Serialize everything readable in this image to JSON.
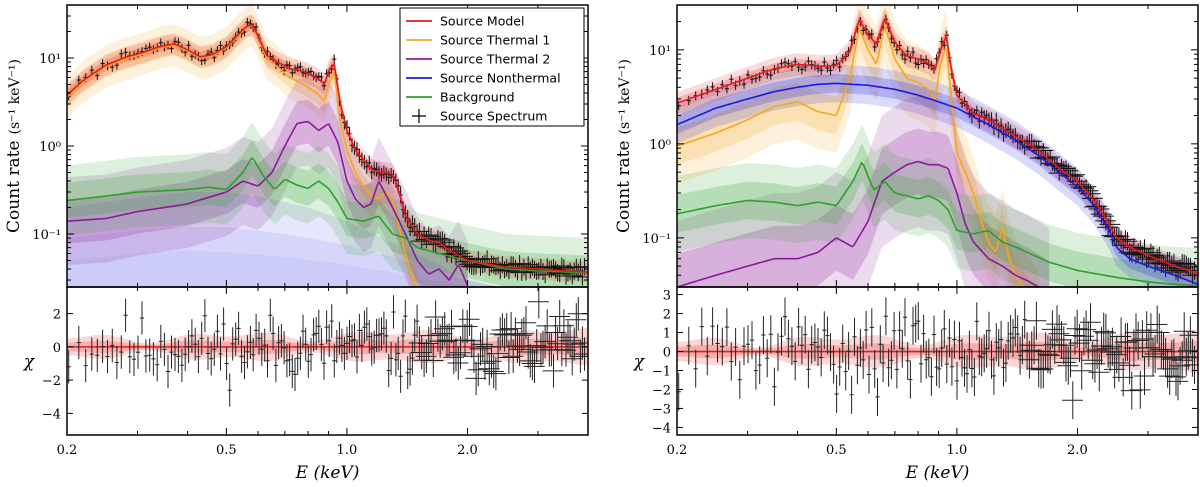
{
  "chart_data": [
    {
      "type": "line",
      "panel": "left",
      "ylabel": "Count rate",
      "ylabel_unit": "(s⁻¹ keV⁻¹)",
      "xlabel": "E (keV)",
      "resid_label": "χ",
      "xlim": [
        0.2,
        4.0
      ],
      "ylim": [
        0.025,
        40
      ],
      "resid_ylim": [
        -5.3,
        3.6
      ],
      "xticks": [
        {
          "v": 0.2,
          "label": "0.2"
        },
        {
          "v": 0.5,
          "label": "0.5"
        },
        {
          "v": 1.0,
          "label": "1.0"
        },
        {
          "v": 2.0,
          "label": "2.0"
        }
      ],
      "yticks": [
        {
          "v": 0.1,
          "label": "10⁻¹"
        },
        {
          "v": 1,
          "label": "10⁰"
        },
        {
          "v": 10,
          "label": "10¹"
        }
      ],
      "resid_ticks": [
        {
          "v": 2,
          "label": "2"
        },
        {
          "v": 0,
          "label": "0"
        },
        {
          "v": -2,
          "label": "−2"
        },
        {
          "v": -4,
          "label": "−4"
        }
      ],
      "legend": [
        {
          "label": "Source Model",
          "color": "#e41a1c",
          "kind": "line"
        },
        {
          "label": "Source Thermal 1",
          "color": "#f5a623",
          "kind": "line"
        },
        {
          "label": "Source Thermal 2",
          "color": "#8b1a9a",
          "kind": "line"
        },
        {
          "label": "Source Nonthermal",
          "color": "#1a1adf",
          "kind": "line"
        },
        {
          "label": "Background",
          "color": "#2ca02c",
          "kind": "line"
        },
        {
          "label": "Source Spectrum",
          "color": "#000000",
          "kind": "cross"
        }
      ],
      "series": [
        {
          "name": "Source Thermal 1",
          "color": "#f5a623",
          "band": 0.12,
          "x": [
            0.2,
            0.22,
            0.25,
            0.28,
            0.31,
            0.34,
            0.37,
            0.4,
            0.43,
            0.46,
            0.5,
            0.53,
            0.56,
            0.58,
            0.6,
            0.63,
            0.67,
            0.72,
            0.78,
            0.84,
            0.88,
            0.9,
            0.93,
            0.96,
            1.0,
            1.05,
            1.1,
            1.15,
            1.2,
            1.25,
            1.3,
            1.35,
            1.4,
            1.45,
            1.5
          ],
          "y": [
            3.6,
            5.4,
            8.0,
            9.8,
            11.2,
            13.0,
            14.0,
            12.0,
            10.0,
            10.5,
            13.0,
            17.0,
            22.0,
            23.5,
            17.0,
            10.0,
            8.0,
            6.0,
            5.0,
            4.0,
            3.2,
            5.0,
            6.8,
            2.0,
            0.9,
            0.5,
            0.35,
            0.28,
            0.25,
            0.3,
            0.25,
            0.12,
            0.06,
            0.035,
            0.024
          ]
        },
        {
          "name": "Source Thermal 2",
          "color": "#8b1a9a",
          "band": 0.25,
          "x": [
            0.2,
            0.25,
            0.3,
            0.35,
            0.4,
            0.45,
            0.5,
            0.55,
            0.6,
            0.65,
            0.7,
            0.75,
            0.8,
            0.85,
            0.9,
            0.95,
            1.0,
            1.05,
            1.1,
            1.15,
            1.2,
            1.3,
            1.4,
            1.5,
            1.6,
            1.7,
            1.8,
            1.9,
            2.0
          ],
          "y": [
            0.14,
            0.15,
            0.18,
            0.2,
            0.22,
            0.26,
            0.3,
            0.4,
            0.35,
            0.5,
            1.0,
            1.8,
            1.9,
            1.5,
            1.8,
            1.1,
            0.4,
            0.25,
            0.2,
            0.22,
            0.4,
            0.2,
            0.1,
            0.05,
            0.035,
            0.04,
            0.03,
            0.045,
            0.026
          ]
        },
        {
          "name": "Background",
          "color": "#2ca02c",
          "band": 0.2,
          "x": [
            0.2,
            0.25,
            0.3,
            0.35,
            0.4,
            0.45,
            0.5,
            0.55,
            0.58,
            0.62,
            0.66,
            0.7,
            0.75,
            0.8,
            0.85,
            0.9,
            0.95,
            1.0,
            1.1,
            1.2,
            1.3,
            1.4,
            1.5,
            1.7,
            2.0,
            2.5,
            3.0,
            3.5,
            4.0
          ],
          "y": [
            0.24,
            0.27,
            0.3,
            0.31,
            0.32,
            0.34,
            0.32,
            0.5,
            0.75,
            0.45,
            0.32,
            0.42,
            0.36,
            0.33,
            0.4,
            0.33,
            0.23,
            0.15,
            0.14,
            0.16,
            0.1,
            0.09,
            0.07,
            0.06,
            0.05,
            0.04,
            0.038,
            0.037,
            0.036
          ]
        },
        {
          "name": "Source Model",
          "color": "#e41a1c",
          "band": 0.06,
          "x": [
            0.2,
            0.22,
            0.25,
            0.28,
            0.31,
            0.34,
            0.37,
            0.4,
            0.43,
            0.46,
            0.5,
            0.53,
            0.56,
            0.58,
            0.6,
            0.63,
            0.67,
            0.72,
            0.78,
            0.84,
            0.88,
            0.9,
            0.93,
            0.96,
            1.0,
            1.05,
            1.1,
            1.15,
            1.2,
            1.25,
            1.3,
            1.35,
            1.4,
            1.5,
            1.6,
            1.7,
            1.8,
            2.0,
            2.5,
            3.0,
            3.5,
            4.0
          ],
          "y": [
            3.8,
            5.6,
            8.3,
            10.2,
            11.6,
            13.4,
            14.5,
            12.4,
            10.3,
            10.9,
            13.4,
            17.6,
            22.6,
            24.0,
            17.8,
            10.8,
            9.0,
            7.6,
            7.0,
            6.0,
            5.0,
            7.2,
            8.6,
            3.2,
            1.5,
            0.9,
            0.7,
            0.55,
            0.5,
            0.5,
            0.48,
            0.3,
            0.16,
            0.1,
            0.085,
            0.08,
            0.065,
            0.05,
            0.042,
            0.04,
            0.038,
            0.037
          ]
        }
      ],
      "nonthermal_bands": [
        {
          "color": "#9a9af2",
          "opacity": 0.55,
          "x": [
            0.2,
            0.25,
            0.3,
            0.4,
            0.5,
            0.7,
            1.0,
            1.3,
            1.6,
            2.0,
            2.5
          ],
          "y": [
            0.05,
            0.055,
            0.06,
            0.065,
            0.062,
            0.055,
            0.045,
            0.036,
            0.03,
            0.026,
            0.024
          ]
        },
        {
          "color": "#b4b4f5",
          "opacity": 0.55,
          "x": [
            0.2,
            0.3,
            0.4,
            0.5,
            0.7,
            1.0,
            1.3,
            1.6,
            2.0,
            2.4
          ],
          "y": [
            0.09,
            0.11,
            0.12,
            0.12,
            0.1,
            0.075,
            0.055,
            0.04,
            0.03,
            0.025
          ]
        },
        {
          "color": "#d6d6fa",
          "opacity": 0.6,
          "x": [
            0.2,
            0.3,
            0.4,
            0.5,
            0.6,
            0.8,
            1.0,
            1.3,
            1.7,
            2.0
          ],
          "y": [
            0.2,
            0.26,
            0.3,
            0.3,
            0.27,
            0.2,
            0.14,
            0.08,
            0.045,
            0.028
          ]
        }
      ],
      "spectrum_seed": 7,
      "resid_seed": 11
    },
    {
      "type": "line",
      "panel": "right",
      "ylabel": "Count rate",
      "ylabel_unit": "(s⁻¹ keV⁻¹)",
      "xlabel": "E (keV)",
      "resid_label": "χ",
      "xlim": [
        0.2,
        4.0
      ],
      "ylim": [
        0.03,
        30
      ],
      "resid_ylim": [
        -4.4,
        3.4
      ],
      "xticks": [
        {
          "v": 0.2,
          "label": "0.2"
        },
        {
          "v": 0.5,
          "label": "0.5"
        },
        {
          "v": 1.0,
          "label": "1.0"
        },
        {
          "v": 2.0,
          "label": "2.0"
        }
      ],
      "yticks": [
        {
          "v": 0.1,
          "label": "10⁻¹"
        },
        {
          "v": 1,
          "label": "10⁰"
        },
        {
          "v": 10,
          "label": "10¹"
        }
      ],
      "resid_ticks": [
        {
          "v": 3,
          "label": "3"
        },
        {
          "v": 2,
          "label": "2"
        },
        {
          "v": 1,
          "label": "1"
        },
        {
          "v": 0,
          "label": "0"
        },
        {
          "v": -1,
          "label": "−1"
        },
        {
          "v": -2,
          "label": "−2"
        },
        {
          "v": -3,
          "label": "−3"
        },
        {
          "v": -4,
          "label": "−4"
        }
      ],
      "legend": [],
      "series": [
        {
          "name": "Source Thermal 1",
          "color": "#f5a623",
          "band": 0.2,
          "x": [
            0.2,
            0.25,
            0.3,
            0.35,
            0.4,
            0.45,
            0.5,
            0.54,
            0.57,
            0.6,
            0.63,
            0.66,
            0.7,
            0.75,
            0.8,
            0.85,
            0.88,
            0.91,
            0.94,
            0.97,
            1.0,
            1.05,
            1.1,
            1.15,
            1.2,
            1.25,
            1.3,
            1.35,
            1.4,
            1.5,
            1.6
          ],
          "y": [
            0.95,
            1.3,
            1.8,
            2.5,
            2.8,
            2.2,
            2.0,
            5.0,
            17.0,
            10.0,
            7.0,
            18.0,
            8.0,
            5.0,
            4.5,
            3.8,
            3.0,
            7.0,
            11.0,
            3.0,
            0.8,
            0.5,
            0.3,
            0.15,
            0.09,
            0.07,
            0.13,
            0.06,
            0.04,
            0.025,
            0.018
          ]
        },
        {
          "name": "Source Thermal 2",
          "color": "#8b1a9a",
          "band": 0.35,
          "x": [
            0.2,
            0.25,
            0.3,
            0.35,
            0.4,
            0.45,
            0.5,
            0.55,
            0.6,
            0.65,
            0.7,
            0.75,
            0.8,
            0.85,
            0.9,
            0.95,
            1.0,
            1.05,
            1.1,
            1.2,
            1.3,
            1.4,
            1.5,
            1.6,
            1.7
          ],
          "y": [
            0.03,
            0.04,
            0.05,
            0.06,
            0.06,
            0.07,
            0.1,
            0.08,
            0.15,
            0.4,
            0.5,
            0.6,
            0.65,
            0.6,
            0.6,
            0.55,
            0.3,
            0.14,
            0.09,
            0.06,
            0.05,
            0.04,
            0.035,
            0.03,
            0.025
          ]
        },
        {
          "name": "Background",
          "color": "#2ca02c",
          "band": 0.2,
          "x": [
            0.2,
            0.25,
            0.3,
            0.35,
            0.4,
            0.45,
            0.5,
            0.55,
            0.58,
            0.62,
            0.66,
            0.7,
            0.75,
            0.8,
            0.85,
            0.9,
            0.95,
            1.0,
            1.1,
            1.2,
            1.3,
            1.4,
            1.5,
            1.7,
            2.0,
            2.5,
            3.0,
            3.5,
            4.0
          ],
          "y": [
            0.18,
            0.22,
            0.25,
            0.24,
            0.22,
            0.24,
            0.22,
            0.4,
            0.65,
            0.32,
            0.4,
            0.3,
            0.28,
            0.26,
            0.28,
            0.25,
            0.2,
            0.12,
            0.11,
            0.12,
            0.09,
            0.08,
            0.07,
            0.055,
            0.045,
            0.038,
            0.034,
            0.032,
            0.031
          ]
        },
        {
          "name": "Source Nonthermal",
          "color": "#1a1adf",
          "band": 0.1,
          "x": [
            0.2,
            0.25,
            0.3,
            0.35,
            0.4,
            0.45,
            0.5,
            0.6,
            0.7,
            0.8,
            0.9,
            1.0,
            1.2,
            1.4,
            1.6,
            1.8,
            2.0,
            2.2,
            2.4,
            2.5,
            2.7,
            3.0,
            3.5,
            4.0
          ],
          "y": [
            1.6,
            2.4,
            3.0,
            3.6,
            4.0,
            4.3,
            4.4,
            4.2,
            3.8,
            3.3,
            2.8,
            2.4,
            1.6,
            1.1,
            0.75,
            0.5,
            0.35,
            0.22,
            0.12,
            0.08,
            0.06,
            0.05,
            0.04,
            0.032
          ]
        },
        {
          "name": "Source Model",
          "color": "#e41a1c",
          "band": 0.06,
          "x": [
            0.2,
            0.25,
            0.3,
            0.35,
            0.4,
            0.45,
            0.5,
            0.54,
            0.57,
            0.6,
            0.63,
            0.66,
            0.7,
            0.75,
            0.8,
            0.85,
            0.88,
            0.91,
            0.94,
            0.97,
            1.0,
            1.1,
            1.2,
            1.4,
            1.6,
            1.8,
            2.0,
            2.2,
            2.4,
            2.5,
            2.7,
            3.0,
            3.5,
            4.0
          ],
          "y": [
            2.7,
            3.8,
            5.0,
            6.3,
            7.0,
            6.7,
            6.8,
            9.5,
            21.0,
            14.5,
            11.5,
            22.0,
            12.0,
            8.6,
            8.0,
            7.2,
            6.0,
            10.0,
            14.0,
            6.0,
            3.3,
            2.1,
            1.8,
            1.2,
            0.85,
            0.55,
            0.4,
            0.25,
            0.14,
            0.1,
            0.08,
            0.065,
            0.05,
            0.042
          ]
        }
      ],
      "nonthermal_bands": [],
      "spectrum_seed": 23,
      "resid_seed": 31
    }
  ]
}
